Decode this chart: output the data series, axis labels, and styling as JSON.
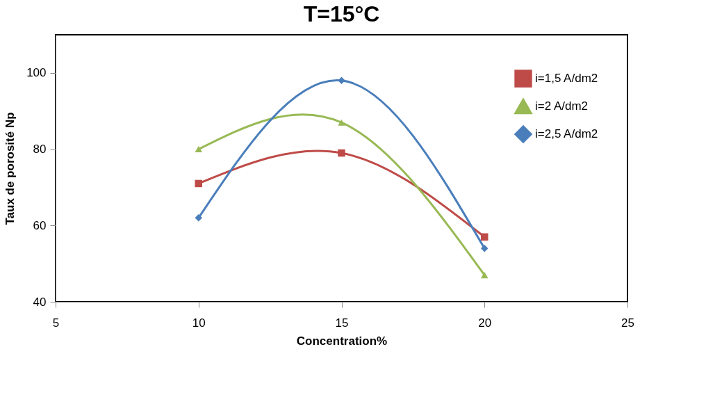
{
  "chart_data": {
    "type": "line",
    "title": "T=15°C",
    "xlabel": "Concentration%",
    "ylabel": "Taux de porosité Np",
    "x": [
      10,
      15,
      20
    ],
    "series": [
      {
        "name": "i=1,5 A/dm2",
        "color": "#be4b48",
        "marker": "square",
        "values": [
          71,
          79,
          57
        ]
      },
      {
        "name": "i=2 A/dm2",
        "color": "#98b954",
        "marker": "triangle",
        "values": [
          80,
          87,
          47
        ]
      },
      {
        "name": "i=2,5 A/dm2",
        "color": "#4a7ebb",
        "marker": "diamond",
        "values": [
          62,
          98,
          54
        ]
      }
    ],
    "xlim": [
      5,
      25
    ],
    "xticks": [
      5,
      10,
      15,
      20,
      25
    ],
    "ylim": [
      40,
      110
    ],
    "yticks": [
      40,
      60,
      80,
      100
    ],
    "grid": false,
    "legend": "top right",
    "line_style": "solid"
  }
}
